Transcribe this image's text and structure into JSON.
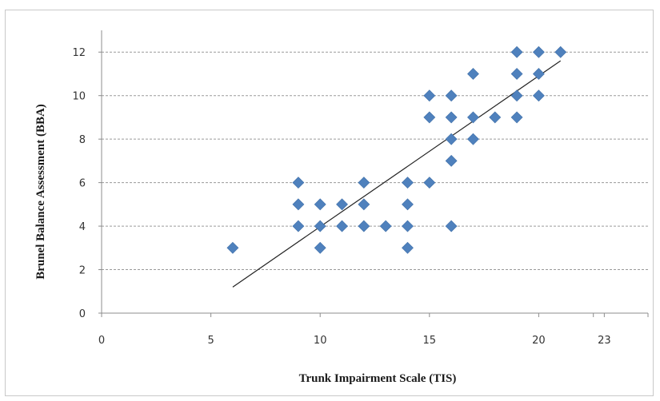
{
  "chart_data": {
    "type": "scatter",
    "xlabel": "Trunk Impairment Scale (TIS)",
    "ylabel": "Brunel Balance Assessment (BBA)",
    "xlim": [
      0,
      25
    ],
    "ylim": [
      0,
      13
    ],
    "x_ticks": [
      "0",
      "5",
      "10",
      "15",
      "20",
      "23"
    ],
    "y_ticks": [
      "0",
      "2",
      "4",
      "6",
      "8",
      "10",
      "12"
    ],
    "grid": "horizontal dashed",
    "marker_color": "#4f81bd",
    "line_color": "#222222",
    "points": [
      [
        6,
        3
      ],
      [
        9,
        6
      ],
      [
        9,
        5
      ],
      [
        9,
        4
      ],
      [
        10,
        5
      ],
      [
        10,
        4
      ],
      [
        10,
        3
      ],
      [
        11,
        5
      ],
      [
        11,
        4
      ],
      [
        12,
        6
      ],
      [
        12,
        5
      ],
      [
        12,
        4
      ],
      [
        13,
        4
      ],
      [
        14,
        6
      ],
      [
        14,
        5
      ],
      [
        14,
        4
      ],
      [
        14,
        3
      ],
      [
        15,
        10
      ],
      [
        15,
        9
      ],
      [
        15,
        6
      ],
      [
        16,
        10
      ],
      [
        16,
        9
      ],
      [
        16,
        8
      ],
      [
        16,
        7
      ],
      [
        16,
        4
      ],
      [
        17,
        11
      ],
      [
        17,
        9
      ],
      [
        17,
        8
      ],
      [
        18,
        9
      ],
      [
        19,
        12
      ],
      [
        19,
        11
      ],
      [
        19,
        10
      ],
      [
        19,
        9
      ],
      [
        20,
        12
      ],
      [
        20,
        11
      ],
      [
        20,
        10
      ],
      [
        21,
        12
      ]
    ],
    "trendline": {
      "x": [
        6,
        21
      ],
      "y": [
        1.2,
        11.6
      ]
    }
  }
}
